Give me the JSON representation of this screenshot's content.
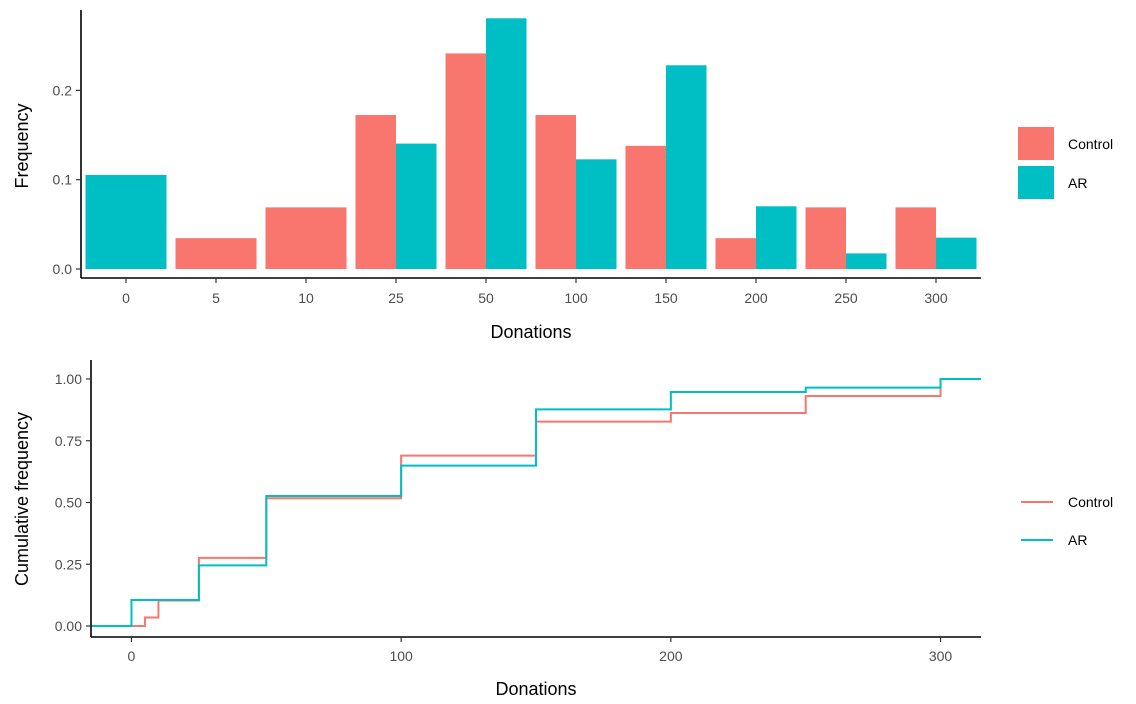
{
  "chart_data": [
    {
      "type": "bar",
      "xlabel": "Donations",
      "ylabel": "Frequency",
      "categories": [
        "0",
        "5",
        "10",
        "25",
        "50",
        "100",
        "150",
        "200",
        "250",
        "300"
      ],
      "series": [
        {
          "name": "Control",
          "color": "#F8766D",
          "values": [
            0,
            0.0345,
            0.069,
            0.1724,
            0.2414,
            0.1724,
            0.1379,
            0.0345,
            0.069,
            0.069
          ]
        },
        {
          "name": "AR",
          "color": "#00BFC4",
          "values": [
            0.1053,
            0,
            0,
            0.1404,
            0.2807,
            0.1228,
            0.2281,
            0.0702,
            0.0175,
            0.0351
          ]
        }
      ],
      "ylim": [
        0,
        0.29
      ],
      "yticks": [
        0.0,
        0.1,
        0.2
      ],
      "ytick_labels": [
        "0.0",
        "0.1",
        "0.2"
      ],
      "legend": {
        "position": "right",
        "entries": [
          "Control",
          "AR"
        ]
      },
      "grid": false
    },
    {
      "type": "line",
      "step": true,
      "xlabel": "Donations",
      "ylabel": "Cumulative frequency",
      "xlim": [
        -15,
        315
      ],
      "ylim": [
        0,
        1
      ],
      "xticks": [
        0,
        100,
        200,
        300
      ],
      "xtick_labels": [
        "0",
        "100",
        "200",
        "300"
      ],
      "yticks": [
        0,
        0.25,
        0.5,
        0.75,
        1.0
      ],
      "ytick_labels": [
        "0.00",
        "0.25",
        "0.50",
        "0.75",
        "1.00"
      ],
      "series": [
        {
          "name": "Control",
          "color": "#F8766D",
          "x": [
            0,
            5,
            10,
            25,
            50,
            100,
            150,
            200,
            250,
            300
          ],
          "y": [
            0,
            0.0345,
            0.1034,
            0.2759,
            0.5172,
            0.6897,
            0.8276,
            0.8621,
            0.931,
            1.0
          ]
        },
        {
          "name": "AR",
          "color": "#00BFC4",
          "x": [
            0,
            5,
            10,
            25,
            50,
            100,
            150,
            200,
            250,
            300
          ],
          "y": [
            0.1053,
            0.1053,
            0.1053,
            0.2456,
            0.5263,
            0.6491,
            0.8772,
            0.9474,
            0.9649,
            1.0
          ]
        }
      ],
      "legend": {
        "position": "right",
        "entries": [
          "Control",
          "AR"
        ]
      },
      "grid": false
    }
  ]
}
